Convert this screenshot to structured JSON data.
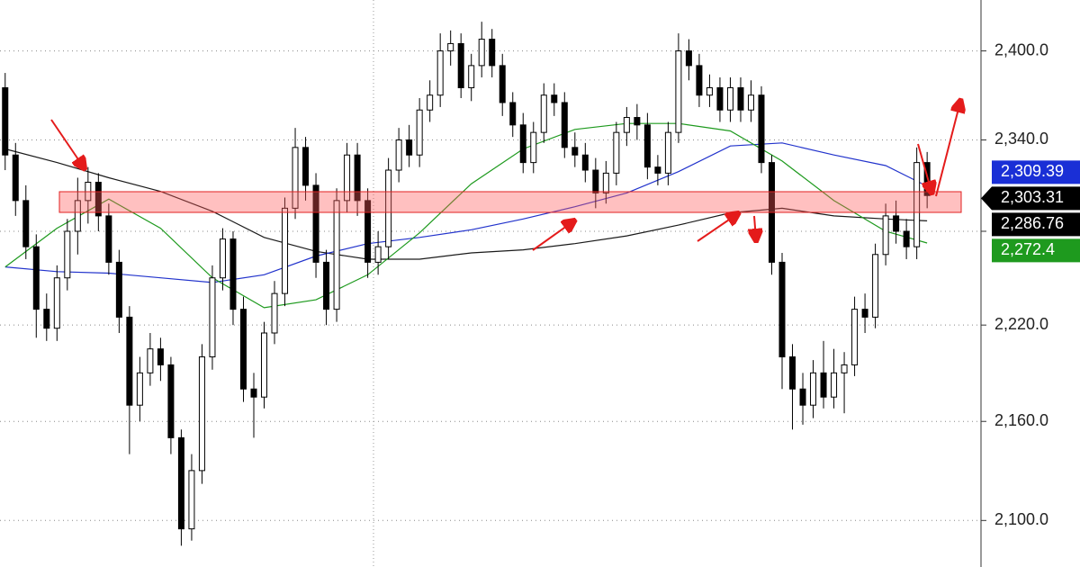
{
  "chart_data": {
    "type": "candlestick",
    "log_scale": true,
    "grid": true,
    "ylim": [
      2072.4,
      2435
    ],
    "yticks": [
      {
        "value": 2100,
        "label": "2,100.0"
      },
      {
        "value": 2160,
        "label": "2,160.0"
      },
      {
        "value": 2220,
        "label": "2,220.0"
      },
      {
        "value": 2280,
        "label": null
      },
      {
        "value": 2340,
        "label": "2,340.0"
      },
      {
        "value": 2400,
        "label": "2,400.0"
      }
    ],
    "xlim": [
      -0.5,
      94.2
    ],
    "up_color": "#ffffff",
    "down_color": "#000000",
    "open": [
      2375,
      2330,
      2300,
      2270,
      2230,
      2218,
      2250,
      2280,
      2300,
      2312,
      2290,
      2260,
      2225,
      2170,
      2190,
      2205,
      2195,
      2150,
      2095,
      2130,
      2200,
      2250,
      2275,
      2230,
      2180,
      2175,
      2215,
      2240,
      2295,
      2335,
      2310,
      2260,
      2230,
      2300,
      2330,
      2300,
      2260,
      2270,
      2320,
      2340,
      2330,
      2360,
      2370,
      2400,
      2405,
      2375,
      2390,
      2408,
      2390,
      2365,
      2350,
      2325,
      2345,
      2370,
      2365,
      2335,
      2330,
      2320,
      2305,
      2318,
      2345,
      2355,
      2350,
      2322,
      2318,
      2345,
      2400,
      2390,
      2370,
      2375,
      2360,
      2375,
      2360,
      2370,
      2325,
      2260,
      2200,
      2180,
      2170,
      2190,
      2175,
      2190,
      2195,
      2230,
      2225,
      2265,
      2290,
      2280,
      2270,
      2325
    ],
    "high": [
      2385,
      2338,
      2310,
      2278,
      2240,
      2258,
      2288,
      2315,
      2322,
      2318,
      2298,
      2268,
      2232,
      2200,
      2215,
      2212,
      2200,
      2155,
      2140,
      2208,
      2258,
      2282,
      2280,
      2238,
      2190,
      2222,
      2248,
      2302,
      2348,
      2342,
      2318,
      2268,
      2308,
      2338,
      2338,
      2308,
      2280,
      2328,
      2348,
      2350,
      2368,
      2380,
      2412,
      2414,
      2412,
      2398,
      2420,
      2415,
      2398,
      2372,
      2358,
      2352,
      2378,
      2378,
      2372,
      2345,
      2338,
      2328,
      2326,
      2352,
      2362,
      2364,
      2358,
      2330,
      2352,
      2412,
      2408,
      2398,
      2384,
      2382,
      2382,
      2382,
      2380,
      2376,
      2330,
      2266,
      2208,
      2190,
      2198,
      2210,
      2205,
      2203,
      2238,
      2240,
      2272,
      2298,
      2300,
      2288,
      2335,
      2332
    ],
    "low": [
      2320,
      2290,
      2262,
      2212,
      2210,
      2210,
      2242,
      2265,
      2285,
      2280,
      2252,
      2215,
      2140,
      2160,
      2182,
      2185,
      2140,
      2085,
      2088,
      2122,
      2192,
      2242,
      2220,
      2172,
      2150,
      2168,
      2208,
      2232,
      2288,
      2300,
      2250,
      2220,
      2222,
      2292,
      2290,
      2250,
      2252,
      2262,
      2312,
      2322,
      2322,
      2352,
      2362,
      2390,
      2368,
      2366,
      2382,
      2382,
      2356,
      2342,
      2318,
      2318,
      2338,
      2356,
      2328,
      2322,
      2312,
      2295,
      2298,
      2310,
      2336,
      2340,
      2314,
      2310,
      2310,
      2338,
      2380,
      2362,
      2362,
      2352,
      2352,
      2352,
      2352,
      2318,
      2252,
      2180,
      2155,
      2158,
      2162,
      2168,
      2168,
      2165,
      2188,
      2215,
      2218,
      2258,
      2272,
      2262,
      2262,
      2295
    ],
    "close": [
      2330,
      2300,
      2270,
      2230,
      2218,
      2250,
      2280,
      2300,
      2312,
      2290,
      2260,
      2225,
      2170,
      2190,
      2205,
      2195,
      2150,
      2095,
      2130,
      2200,
      2250,
      2275,
      2230,
      2180,
      2175,
      2215,
      2240,
      2295,
      2335,
      2310,
      2260,
      2230,
      2300,
      2330,
      2300,
      2260,
      2270,
      2320,
      2340,
      2330,
      2360,
      2370,
      2400,
      2405,
      2375,
      2390,
      2408,
      2390,
      2365,
      2350,
      2325,
      2345,
      2370,
      2365,
      2335,
      2330,
      2320,
      2305,
      2318,
      2345,
      2355,
      2350,
      2322,
      2318,
      2345,
      2400,
      2390,
      2370,
      2375,
      2360,
      2375,
      2360,
      2370,
      2325,
      2260,
      2200,
      2180,
      2170,
      2190,
      2175,
      2190,
      2195,
      2230,
      2225,
      2265,
      2290,
      2280,
      2270,
      2325,
      2303.31
    ],
    "lines": [
      {
        "color": "#1a1a1a",
        "x": [
          0,
          5,
          10,
          15,
          20,
          25,
          30,
          35,
          40,
          45,
          50,
          55,
          60,
          65,
          70,
          75,
          80,
          85,
          89
        ],
        "values": [
          2334,
          2325,
          2315,
          2306,
          2293,
          2276,
          2267,
          2262,
          2262,
          2266,
          2268,
          2272,
          2277,
          2284,
          2292,
          2295,
          2290,
          2288,
          2286.76
        ]
      },
      {
        "color": "#2233cc",
        "x": [
          0,
          5,
          10,
          15,
          20,
          25,
          30,
          35,
          40,
          45,
          50,
          55,
          60,
          65,
          70,
          75,
          80,
          85,
          89
        ],
        "values": [
          2257,
          2254,
          2253,
          2250,
          2247,
          2252,
          2264,
          2272,
          2276,
          2281,
          2288,
          2296,
          2305,
          2319,
          2336,
          2338,
          2330,
          2323,
          2309.39
        ]
      },
      {
        "color": "#1e9a1e",
        "x": [
          0,
          5,
          10,
          15,
          20,
          25,
          30,
          35,
          40,
          45,
          50,
          55,
          60,
          65,
          70,
          75,
          80,
          85,
          89
        ],
        "values": [
          2257,
          2282,
          2301,
          2282,
          2250,
          2231,
          2236,
          2252,
          2279,
          2311,
          2334,
          2347,
          2351,
          2351,
          2346,
          2326,
          2300,
          2280,
          2272.4
        ]
      }
    ],
    "price_tags": [
      {
        "value": 2309.39,
        "label": "2,309.39",
        "color": "#1a2fd6"
      },
      {
        "value": 2303.31,
        "label": "2,303.31",
        "color": "#000000"
      },
      {
        "value": 2286.76,
        "label": "2,286.76",
        "color": "#000000"
      },
      {
        "value": 2272.4,
        "label": "2,272.4",
        "color": "#1e9a1e"
      }
    ]
  }
}
